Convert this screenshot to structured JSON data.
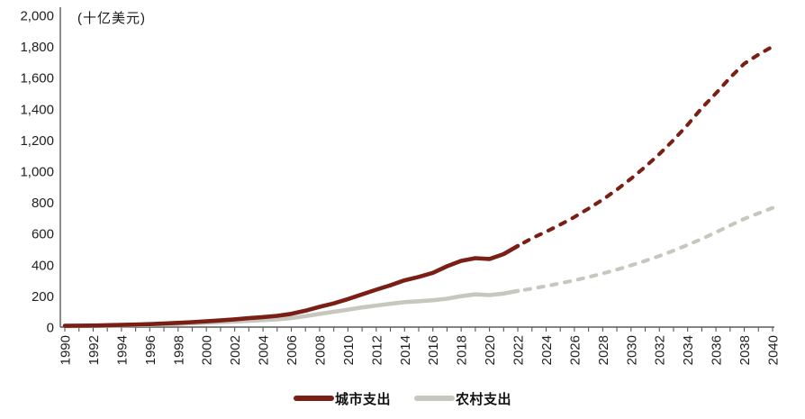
{
  "chart_data": {
    "type": "line",
    "title": "",
    "unit_label": "(十亿美元)",
    "xlabel": "",
    "ylabel": "",
    "ylim": [
      0,
      2000
    ],
    "ytick_step": 200,
    "x_range": [
      1990,
      2040
    ],
    "xtick_label_step": 2,
    "grid": "off",
    "legend_position": "bottom",
    "forecast_style": "dashed-after-solid-until-year",
    "axis_color": "#5a5a5a",
    "text_color": "#1f1f1f",
    "x": [
      1990,
      1991,
      1992,
      1993,
      1994,
      1995,
      1996,
      1997,
      1998,
      1999,
      2000,
      2001,
      2002,
      2003,
      2004,
      2005,
      2006,
      2007,
      2008,
      2009,
      2010,
      2011,
      2012,
      2013,
      2014,
      2015,
      2016,
      2017,
      2018,
      2019,
      2020,
      2021,
      2022,
      2023,
      2024,
      2025,
      2026,
      2027,
      2028,
      2029,
      2030,
      2031,
      2032,
      2033,
      2034,
      2035,
      2036,
      2037,
      2038,
      2039,
      2040
    ],
    "series": [
      {
        "name": "城市支出",
        "color": "#7a1f15",
        "solid_until": 2022,
        "values": [
          8,
          9,
          10,
          12,
          14,
          16,
          19,
          23,
          27,
          32,
          37,
          43,
          50,
          57,
          64,
          72,
          85,
          105,
          130,
          152,
          180,
          210,
          240,
          268,
          300,
          322,
          348,
          390,
          425,
          442,
          437,
          468,
          520,
          570,
          612,
          657,
          706,
          760,
          818,
          882,
          952,
          1028,
          1110,
          1200,
          1298,
          1405,
          1500,
          1600,
          1690,
          1748,
          1800
        ]
      },
      {
        "name": "农村支出",
        "color": "#c8c7bd",
        "solid_until": 2022,
        "values": [
          6,
          7,
          8,
          9,
          11,
          13,
          15,
          18,
          21,
          24,
          28,
          32,
          36,
          40,
          45,
          50,
          58,
          70,
          85,
          98,
          112,
          126,
          138,
          150,
          160,
          166,
          172,
          182,
          198,
          210,
          205,
          215,
          232,
          247,
          263,
          281,
          300,
          321,
          344,
          369,
          396,
          425,
          456,
          490,
          527,
          566,
          608,
          652,
          695,
          730,
          765
        ]
      }
    ]
  }
}
